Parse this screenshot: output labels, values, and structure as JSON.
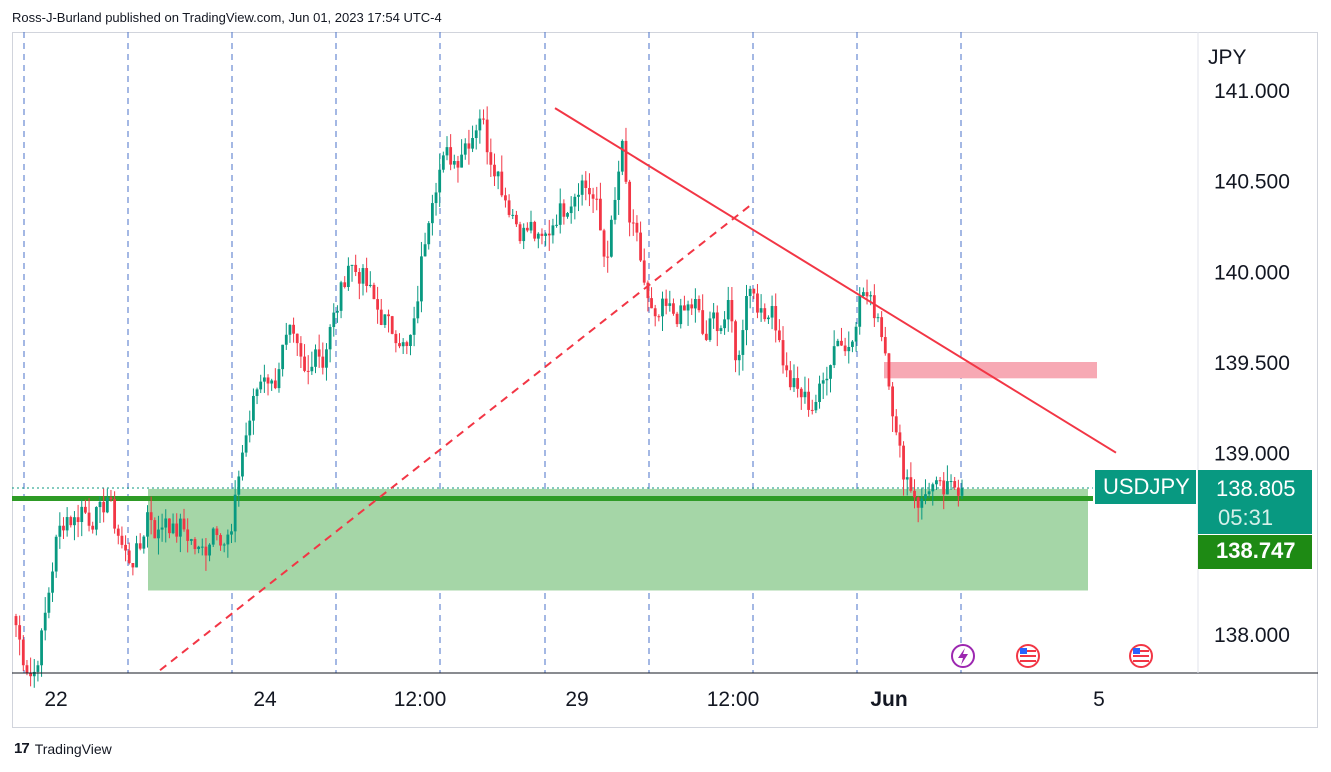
{
  "header": {
    "attribution": "Ross-J-Burland published on TradingView.com, Jun 01, 2023 17:54 UTC-4"
  },
  "footer": {
    "brand": "TradingView",
    "logo": "17"
  },
  "chart_data": {
    "type": "candlestick",
    "symbol": "USDJPY",
    "currency_label": "JPY",
    "y_ticks": [
      "141.000",
      "140.500",
      "140.000",
      "139.500",
      "139.000",
      "138.000"
    ],
    "y_tick_values": [
      141.0,
      140.5,
      140.0,
      139.5,
      139.0,
      138.0
    ],
    "ylim": [
      137.8,
      141.35
    ],
    "x_ticks": [
      "22",
      "24",
      "12:00",
      "29",
      "12:00",
      "Jun",
      "5"
    ],
    "current_price": "138.805",
    "countdown": "05:31",
    "horizontal_level": "138.747",
    "horizontal_level_value": 138.747,
    "support_zone": {
      "top": 138.8,
      "bottom": 138.24,
      "color": "#a5d6a7"
    },
    "resistance_zone": {
      "top": 139.5,
      "bottom": 139.41,
      "color": "#f7a9b4"
    },
    "trendline_resistance": {
      "from": 140.9,
      "to": 139.0,
      "color": "#f23645"
    },
    "trendline_support_dashed": {
      "from": 137.8,
      "to": 140.38,
      "color": "#f23645"
    },
    "up_color": "#089981",
    "down_color": "#f23645",
    "event_icons": [
      "lightning-icon",
      "us-flag-icon",
      "us-flag-icon"
    ],
    "price_path": [
      138.05,
      137.85,
      137.75,
      137.95,
      138.25,
      138.55,
      138.65,
      138.62,
      138.7,
      138.62,
      138.66,
      138.76,
      138.6,
      138.45,
      138.4,
      138.48,
      138.7,
      138.52,
      138.66,
      138.55,
      138.6,
      138.52,
      138.45,
      138.48,
      138.62,
      138.5,
      138.55,
      138.95,
      139.15,
      139.35,
      139.45,
      139.35,
      139.55,
      139.65,
      139.55,
      139.4,
      139.6,
      139.5,
      139.7,
      139.85,
      140.05,
      140.0,
      139.95,
      139.85,
      139.75,
      139.7,
      139.65,
      139.55,
      139.7,
      140.1,
      140.4,
      140.55,
      140.65,
      140.6,
      140.7,
      140.75,
      140.88,
      140.65,
      140.55,
      140.4,
      140.3,
      140.2,
      140.25,
      140.15,
      140.2,
      140.3,
      140.35,
      140.4,
      140.5,
      140.45,
      140.35,
      140.05,
      140.3,
      140.7,
      140.25,
      140.15,
      139.85,
      139.7,
      139.8,
      139.78,
      139.75,
      139.8,
      139.82,
      139.6,
      139.75,
      139.7,
      139.8,
      139.45,
      139.9,
      139.9,
      139.7,
      139.85,
      139.6,
      139.4,
      139.35,
      139.3,
      139.25,
      139.35,
      139.5,
      139.65,
      139.55,
      139.7,
      139.9,
      139.82,
      139.75,
      139.5,
      139.1,
      138.9,
      138.8,
      138.7,
      138.82,
      138.8,
      138.78,
      138.82,
      138.805
    ]
  }
}
